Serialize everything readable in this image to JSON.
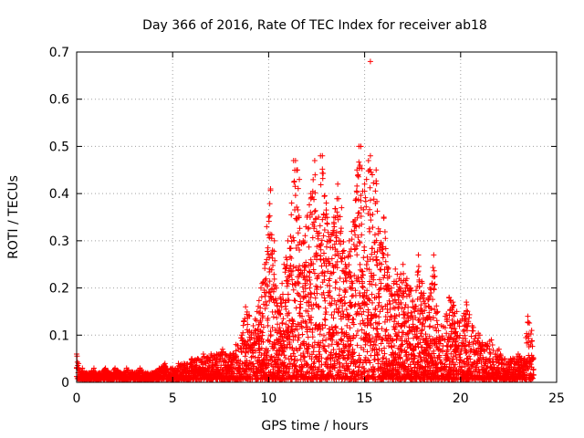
{
  "chart_data": {
    "type": "scatter",
    "title": "Day 366 of 2016, Rate Of TEC Index for receiver ab18",
    "xlabel": "GPS time / hours",
    "ylabel": "ROTI / TECUs",
    "xlim": [
      0,
      25
    ],
    "ylim": [
      0,
      0.7
    ],
    "xticks": [
      0,
      5,
      10,
      15,
      20,
      25
    ],
    "xtick_labels": [
      "0",
      "5",
      "10",
      "15",
      "20",
      "25"
    ],
    "yticks": [
      0,
      0.1,
      0.2,
      0.3,
      0.4,
      0.5,
      0.6,
      0.7
    ],
    "ytick_labels": [
      "0",
      "0.1",
      "0.2",
      "0.3",
      "0.4",
      "0.5",
      "0.6",
      "0.7"
    ],
    "grid": true,
    "marker": "+",
    "marker_color": "#ff0000",
    "series": [
      {
        "name": "ROTI",
        "x": [
          0.0,
          0.1,
          0.2,
          0.3,
          0.5,
          0.7,
          0.9,
          1.0,
          1.2,
          1.5,
          1.8,
          2.0,
          2.3,
          2.6,
          3.0,
          3.3,
          3.6,
          4.0,
          4.3,
          4.6,
          5.0,
          5.3,
          5.6,
          6.0,
          6.3,
          6.6,
          7.0,
          7.3,
          7.6,
          8.0,
          8.3,
          8.6,
          8.8,
          9.0,
          9.2,
          9.4,
          9.6,
          9.8,
          9.9,
          10.0,
          10.1,
          10.2,
          10.3,
          10.4,
          10.5,
          10.6,
          10.8,
          11.0,
          11.2,
          11.4,
          11.5,
          11.6,
          11.8,
          12.0,
          12.2,
          12.4,
          12.5,
          12.6,
          12.8,
          13.0,
          13.2,
          13.4,
          13.6,
          13.8,
          14.0,
          14.2,
          14.4,
          14.6,
          14.8,
          15.0,
          15.1,
          15.2,
          15.4,
          15.6,
          15.8,
          16.0,
          16.2,
          16.4,
          16.6,
          16.8,
          17.0,
          17.2,
          17.4,
          17.6,
          17.8,
          18.0,
          18.2,
          18.4,
          18.6,
          18.8,
          19.0,
          19.2,
          19.4,
          19.6,
          19.8,
          20.0,
          20.3,
          20.6,
          21.0,
          21.3,
          21.6,
          22.0,
          22.3,
          22.6,
          23.0,
          23.3,
          23.5,
          23.7,
          23.8
        ],
        "y": [
          0.06,
          0.04,
          0.02,
          0.03,
          0.02,
          0.02,
          0.03,
          0.02,
          0.02,
          0.03,
          0.02,
          0.03,
          0.02,
          0.03,
          0.02,
          0.03,
          0.02,
          0.02,
          0.03,
          0.04,
          0.03,
          0.04,
          0.04,
          0.05,
          0.05,
          0.06,
          0.06,
          0.06,
          0.07,
          0.06,
          0.08,
          0.1,
          0.16,
          0.14,
          0.12,
          0.15,
          0.2,
          0.25,
          0.33,
          0.35,
          0.41,
          0.28,
          0.3,
          0.2,
          0.15,
          0.18,
          0.25,
          0.3,
          0.38,
          0.47,
          0.45,
          0.43,
          0.3,
          0.35,
          0.4,
          0.47,
          0.32,
          0.35,
          0.48,
          0.38,
          0.3,
          0.35,
          0.42,
          0.37,
          0.25,
          0.3,
          0.34,
          0.45,
          0.5,
          0.42,
          0.43,
          0.47,
          0.44,
          0.45,
          0.32,
          0.35,
          0.27,
          0.2,
          0.24,
          0.22,
          0.25,
          0.22,
          0.2,
          0.15,
          0.27,
          0.21,
          0.16,
          0.2,
          0.27,
          0.15,
          0.12,
          0.14,
          0.18,
          0.17,
          0.15,
          0.13,
          0.17,
          0.12,
          0.1,
          0.08,
          0.09,
          0.07,
          0.05,
          0.05,
          0.06,
          0.05,
          0.14,
          0.11,
          0.05
        ],
        "noise_floor": 0.02,
        "outliers": [
          {
            "x": 15.3,
            "y": 0.68
          },
          {
            "x": 15.3,
            "y": 0.48
          },
          {
            "x": 14.7,
            "y": 0.5
          },
          {
            "x": 11.3,
            "y": 0.47
          },
          {
            "x": 12.7,
            "y": 0.48
          }
        ]
      }
    ]
  }
}
